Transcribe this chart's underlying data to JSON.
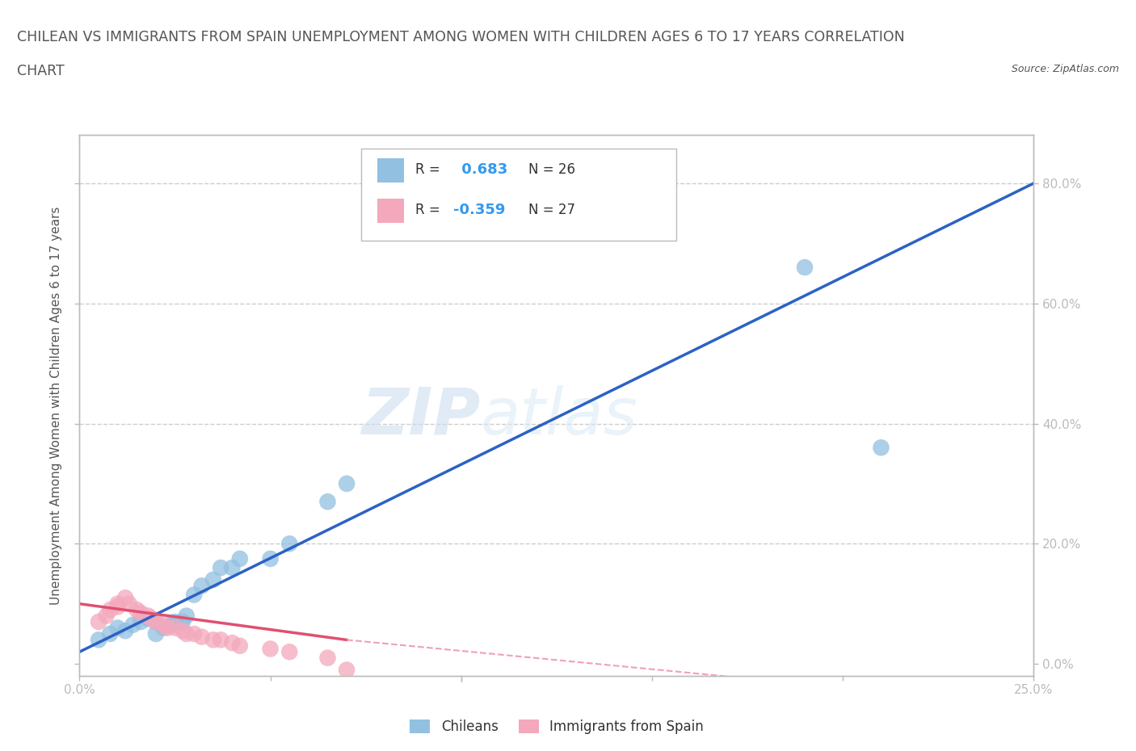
{
  "title_line1": "CHILEAN VS IMMIGRANTS FROM SPAIN UNEMPLOYMENT AMONG WOMEN WITH CHILDREN AGES 6 TO 17 YEARS CORRELATION",
  "title_line2": "CHART",
  "source": "Source: ZipAtlas.com",
  "ylabel": "Unemployment Among Women with Children Ages 6 to 17 years",
  "xlim": [
    0.0,
    0.25
  ],
  "ylim": [
    -0.02,
    0.88
  ],
  "xticks": [
    0.0,
    0.05,
    0.1,
    0.15,
    0.2,
    0.25
  ],
  "yticks": [
    0.0,
    0.2,
    0.4,
    0.6,
    0.8
  ],
  "xtick_labels": [
    "0.0%",
    "",
    "",
    "",
    "",
    "25.0%"
  ],
  "ytick_labels_right": [
    "0.0%",
    "20.0%",
    "40.0%",
    "60.0%",
    "80.0%"
  ],
  "r_blue": "0.683",
  "n_blue": "26",
  "r_pink": "-0.359",
  "n_pink": "27",
  "blue_color": "#92c0e0",
  "pink_color": "#f4a8bc",
  "blue_line_color": "#2b62c4",
  "pink_line_solid_color": "#e05070",
  "pink_line_dashed_color": "#f0a0b8",
  "watermark_zip": "ZIP",
  "watermark_atlas": "atlas",
  "legend_blue_label": "Chileans",
  "legend_pink_label": "Immigrants from Spain",
  "blue_scatter_x": [
    0.005,
    0.008,
    0.01,
    0.012,
    0.014,
    0.016,
    0.018,
    0.02,
    0.02,
    0.022,
    0.024,
    0.025,
    0.027,
    0.028,
    0.03,
    0.032,
    0.035,
    0.037,
    0.04,
    0.042,
    0.05,
    0.055,
    0.065,
    0.07,
    0.19,
    0.21
  ],
  "blue_scatter_y": [
    0.04,
    0.05,
    0.06,
    0.055,
    0.065,
    0.07,
    0.075,
    0.05,
    0.07,
    0.06,
    0.065,
    0.07,
    0.07,
    0.08,
    0.115,
    0.13,
    0.14,
    0.16,
    0.16,
    0.175,
    0.175,
    0.2,
    0.27,
    0.3,
    0.66,
    0.36
  ],
  "pink_scatter_x": [
    0.005,
    0.007,
    0.008,
    0.01,
    0.01,
    0.012,
    0.013,
    0.015,
    0.016,
    0.018,
    0.019,
    0.02,
    0.022,
    0.023,
    0.025,
    0.027,
    0.028,
    0.03,
    0.032,
    0.035,
    0.037,
    0.04,
    0.042,
    0.05,
    0.055,
    0.065,
    0.07
  ],
  "pink_scatter_y": [
    0.07,
    0.08,
    0.09,
    0.095,
    0.1,
    0.11,
    0.1,
    0.09,
    0.085,
    0.08,
    0.075,
    0.07,
    0.065,
    0.06,
    0.06,
    0.055,
    0.05,
    0.05,
    0.045,
    0.04,
    0.04,
    0.035,
    0.03,
    0.025,
    0.02,
    0.01,
    -0.01
  ],
  "grid_color": "#cccccc",
  "bg_color": "#ffffff",
  "title_color": "#555555",
  "axis_color": "#bbbbbb",
  "tick_color_blue": "#5599cc"
}
